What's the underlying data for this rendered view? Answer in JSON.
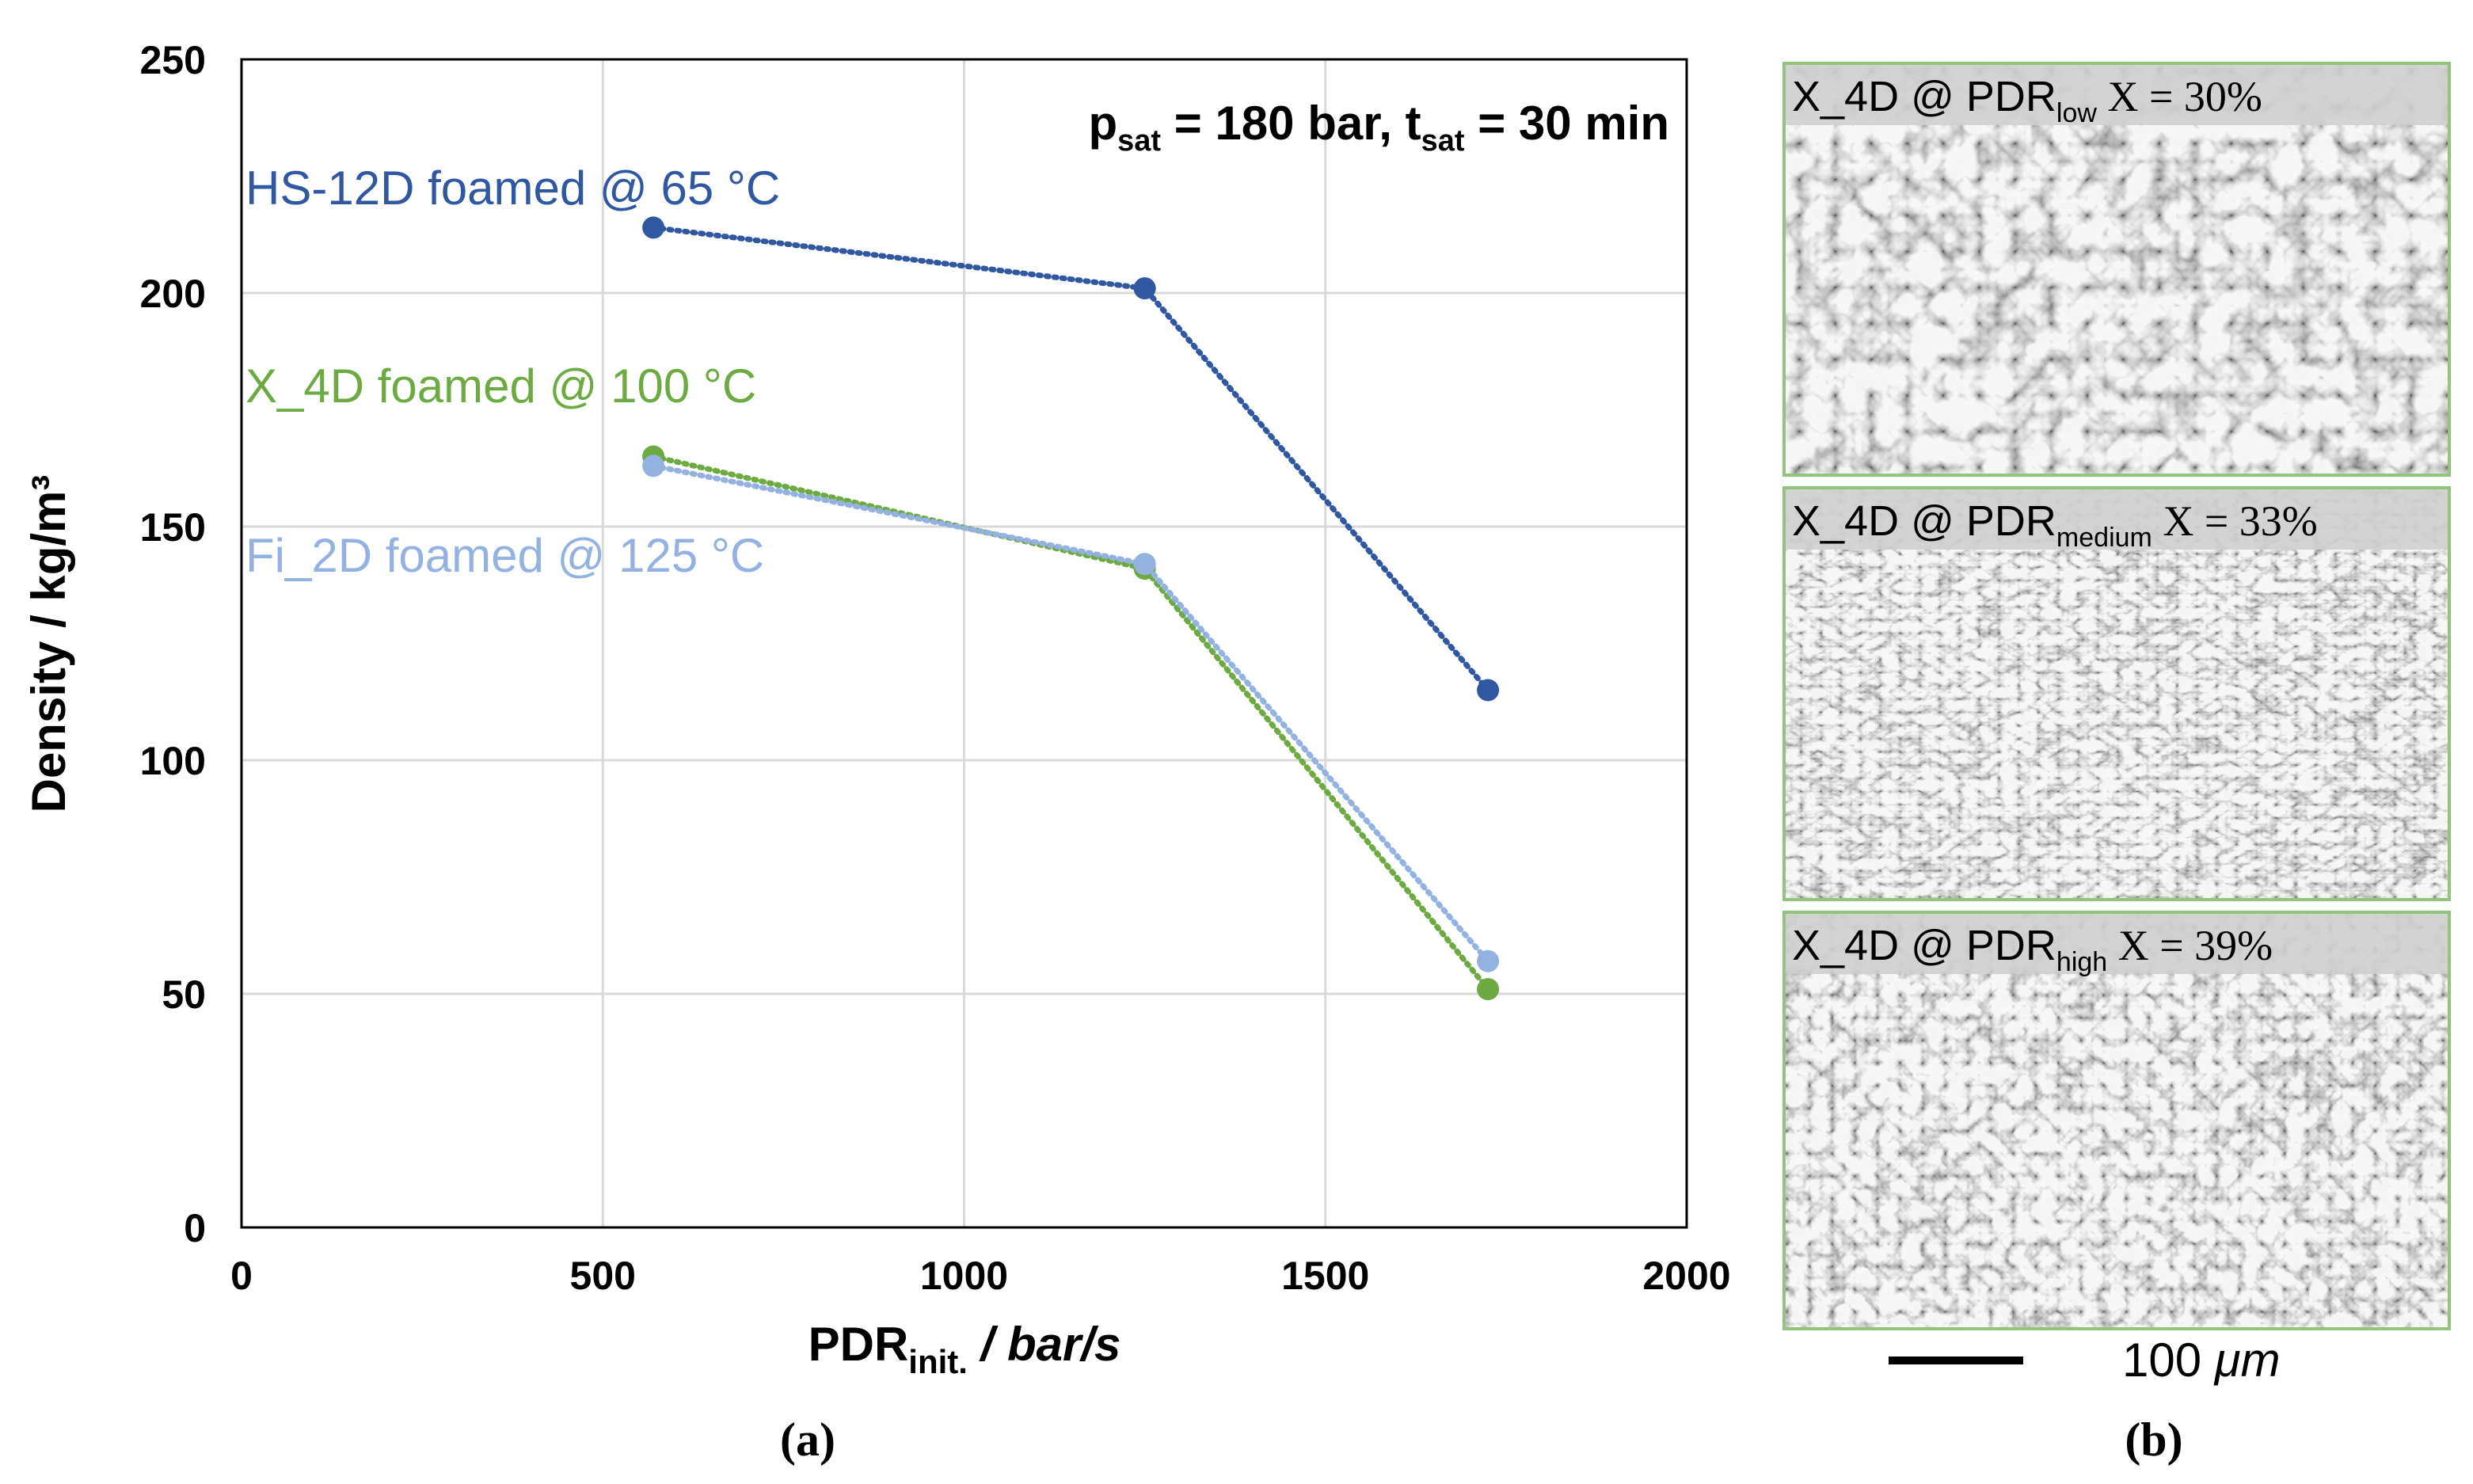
{
  "colors": {
    "hs12d": "#2f58a1",
    "x4d": "#6dab42",
    "fi2d": "#94b2e1",
    "frame": "#93c47d",
    "grid": "#d9d9d9"
  },
  "chart_data": {
    "type": "line",
    "style": "dotted line with circle markers",
    "title": "",
    "annotation": {
      "p": "p",
      "p_sub": "sat",
      "p_rest": " = 180 bar, ",
      "t": "t",
      "t_sub": "sat",
      "t_rest": " = 30 min"
    },
    "xlabel": {
      "main": "PDR",
      "sub": "init.",
      "rest": " / bar/s"
    },
    "ylabel": "Density / kg/m³",
    "xlim": [
      0,
      2000
    ],
    "ylim": [
      0,
      250
    ],
    "xticks": [
      0,
      500,
      1000,
      1500,
      2000
    ],
    "yticks": [
      0,
      50,
      100,
      150,
      200,
      250
    ],
    "grid": true,
    "series": [
      {
        "name": "HS-12D foamed @ 65 °C",
        "color_key": "hs12d",
        "x": [
          570,
          1250,
          1725
        ],
        "y": [
          214,
          201,
          115
        ]
      },
      {
        "name": "X_4D foamed @ 100 °C",
        "color_key": "x4d",
        "x": [
          570,
          1250,
          1725
        ],
        "y": [
          165,
          141,
          51
        ]
      },
      {
        "name": "Fi_2D foamed @ 125 °C",
        "color_key": "fi2d",
        "x": [
          570,
          1250,
          1725
        ],
        "y": [
          163,
          142,
          57
        ]
      }
    ]
  },
  "panel_b": {
    "images": [
      {
        "prefix": "X_4D @ PDR",
        "sub": "low",
        "suffix": " X = 30%"
      },
      {
        "prefix": "X_4D @ PDR",
        "sub": "medium",
        "suffix": " X = 33%"
      },
      {
        "prefix": "X_4D @ PDR",
        "sub": "high",
        "suffix": " X = 39%"
      }
    ],
    "scale_bar": {
      "value": "100",
      "unit": "μm"
    }
  },
  "captions": {
    "a": "(a)",
    "b": "(b)"
  }
}
